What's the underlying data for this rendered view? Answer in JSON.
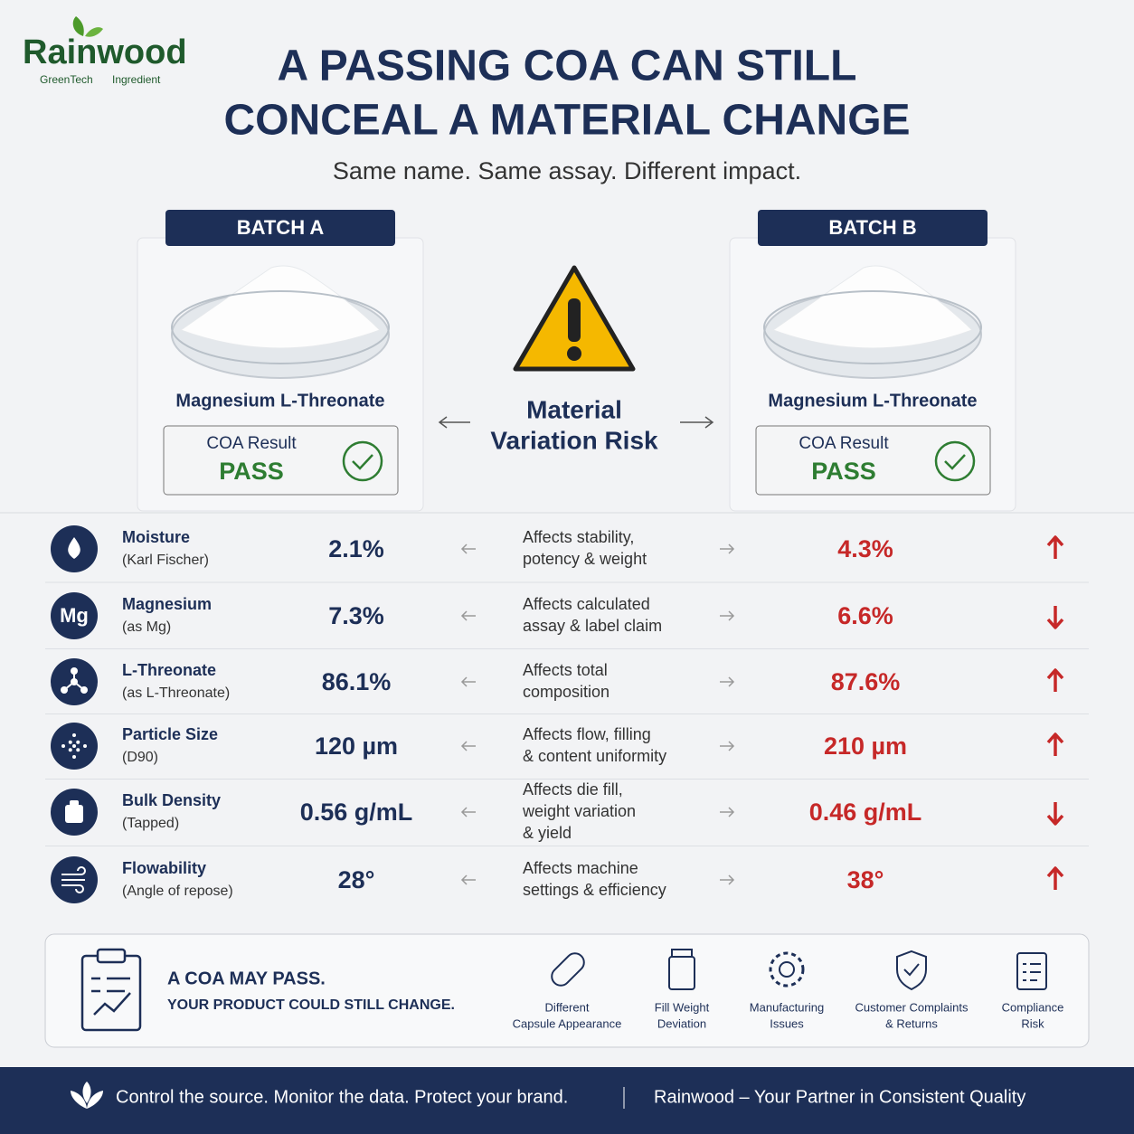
{
  "brand": {
    "name": "Rainwood",
    "tagline_1": "GreenTech",
    "tagline_2": "Ingredient"
  },
  "header": {
    "title_line_1": "A PASSING COA CAN STILL",
    "title_line_2": "CONCEAL A MATERIAL CHANGE",
    "subtitle": "Same name. Same assay. Different impact."
  },
  "batches": [
    {
      "label": "BATCH A",
      "product": "Magnesium L-Threonate",
      "result_label": "COA Result",
      "result": "PASS"
    },
    {
      "label": "BATCH B",
      "product": "Magnesium L-Threonate",
      "result_label": "COA Result",
      "result": "PASS"
    }
  ],
  "center": {
    "line_1": "Material",
    "line_2": "Variation Risk"
  },
  "rows": [
    {
      "name": "Moisture",
      "method": "(Karl Fischer)",
      "batch_a": "2.1%",
      "impact": [
        "Affects stability,",
        "potency & weight"
      ],
      "batch_b": "4.3%",
      "trend": "up"
    },
    {
      "name": "Magnesium",
      "method": "(as Mg)",
      "icon_label": "Mg",
      "batch_a": "7.3%",
      "impact": [
        "Affects calculated",
        "assay & label claim"
      ],
      "batch_b": "6.6%",
      "trend": "down"
    },
    {
      "name": "L-Threonate",
      "method": "(as L-Threonate)",
      "batch_a": "86.1%",
      "impact": [
        "Affects total",
        "composition"
      ],
      "batch_b": "87.6%",
      "trend": "up"
    },
    {
      "name": "Particle Size",
      "method": "(D90)",
      "batch_a": "120 µm",
      "impact": [
        "Affects flow, filling",
        "& content uniformity"
      ],
      "batch_b": "210 µm",
      "trend": "up"
    },
    {
      "name": "Bulk Density",
      "method": "(Tapped)",
      "batch_a": "0.56 g/mL",
      "impact": [
        "Affects die fill,",
        "weight variation",
        "& yield"
      ],
      "batch_b": "0.46 g/mL",
      "trend": "down"
    },
    {
      "name": "Flowability",
      "method": "(Angle of repose)",
      "batch_a": "28°",
      "impact": [
        "Affects machine",
        "settings & efficiency"
      ],
      "batch_b": "38°",
      "trend": "up"
    }
  ],
  "callout": {
    "line_1": "A COA MAY PASS.",
    "line_2": "YOUR PRODUCT COULD STILL CHANGE.",
    "risks": [
      [
        "Different",
        "Capsule Appearance"
      ],
      [
        "Fill Weight",
        "Deviation"
      ],
      [
        "Manufacturing",
        "Issues"
      ],
      [
        "Customer Complaints",
        "& Returns"
      ],
      [
        "Compliance",
        "Risk"
      ]
    ]
  },
  "footer": {
    "left": "Control the source. Monitor the data. Protect your brand.",
    "right": "Rainwood – Your Partner in Consistent Quality"
  }
}
